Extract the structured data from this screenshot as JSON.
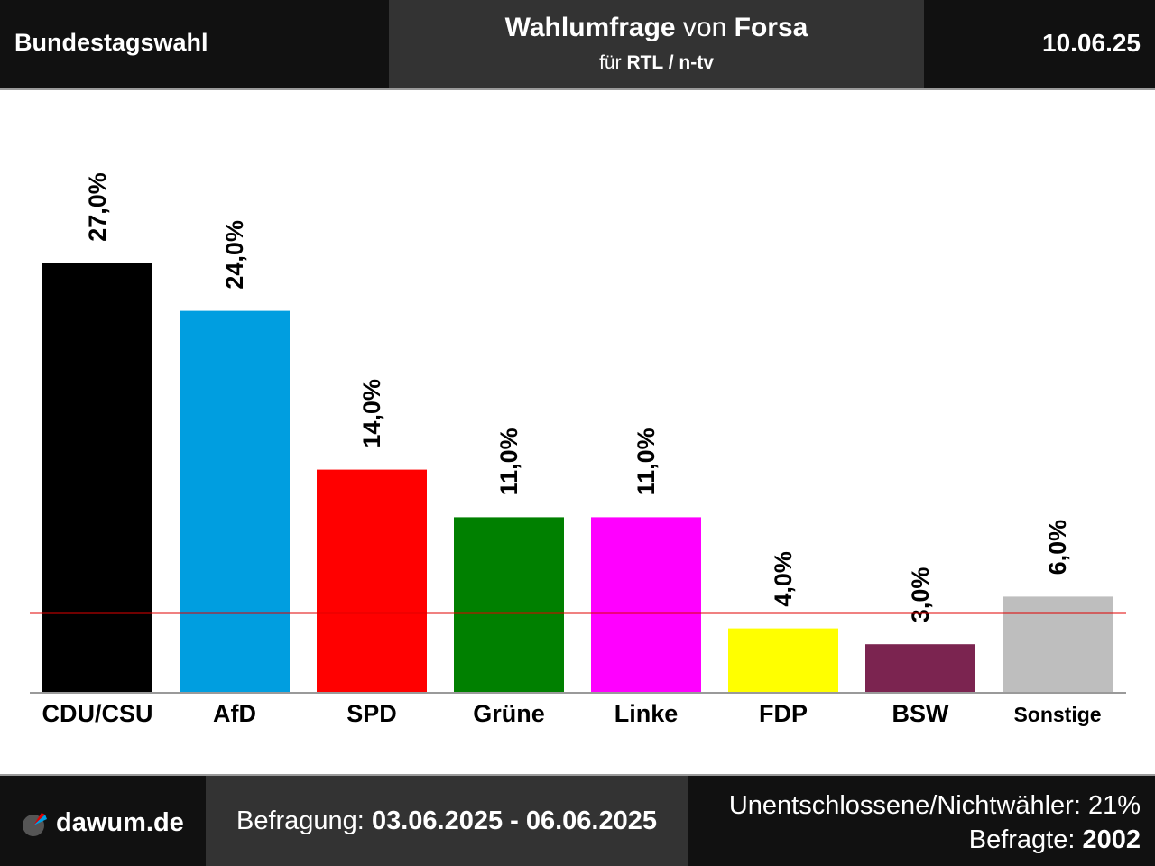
{
  "header": {
    "left": "Bundestagswahl",
    "title_bold1": "Wahlumfrage",
    "title_mid": " von ",
    "title_bold2": "Forsa",
    "sub_prefix": "für ",
    "sub_bold": "RTL / n-tv",
    "date": "10.06.25"
  },
  "footer": {
    "logo": "dawum.de",
    "survey_label": "Befragung: ",
    "survey_range": "03.06.2025 - 06.06.2025",
    "undecided": "Unentschlossene/Nichtwähler: 21%",
    "respondents_label": "Befragte: ",
    "respondents": "2002"
  },
  "colors": {
    "threshold": "#e00000",
    "axis": "#9a9a9a"
  },
  "chart_data": {
    "type": "bar",
    "categories": [
      "CDU/CSU",
      "AfD",
      "SPD",
      "Grüne",
      "Linke",
      "FDP",
      "BSW",
      "Sonstige"
    ],
    "values": [
      27.0,
      24.0,
      14.0,
      11.0,
      11.0,
      4.0,
      3.0,
      6.0
    ],
    "value_labels": [
      "27,0%",
      "24,0%",
      "14,0%",
      "11,0%",
      "11,0%",
      "4,0%",
      "3,0%",
      "6,0%"
    ],
    "colors": [
      "#000000",
      "#009ee0",
      "#ff0000",
      "#008000",
      "#ff00ff",
      "#ffff00",
      "#7b2450",
      "#bebebe"
    ],
    "threshold": 5,
    "ylim": [
      0,
      30
    ]
  }
}
